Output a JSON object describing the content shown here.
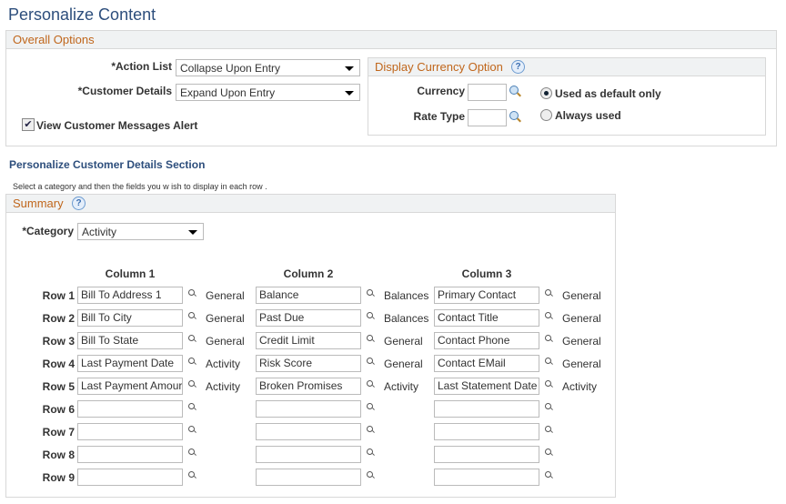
{
  "title": "Personalize Content",
  "overall": {
    "header": "Overall Options",
    "action_list_label": "*Action List",
    "action_list_value": "Collapse Upon Entry",
    "customer_details_label": "*Customer Details",
    "customer_details_value": "Expand Upon Entry",
    "view_alert_label": "View Customer Messages Alert",
    "view_alert_checked": true
  },
  "currency": {
    "header": "Display Currency Option",
    "currency_label": "Currency",
    "currency_value": "",
    "rate_type_label": "Rate Type",
    "rate_type_value": "",
    "radio_default": "Used as default only",
    "radio_always": "Always used",
    "selected": "Used as default only"
  },
  "section_title": "Personalize Customer Details Section",
  "instructions": "Select a category and then the fields you w ish to display in each row .",
  "summary": {
    "header": "Summary",
    "category_label": "*Category",
    "category_value": "Activity",
    "columns": [
      "Column 1",
      "Column 2",
      "Column 3"
    ],
    "rows": [
      {
        "label": "Row 1",
        "cells": [
          {
            "value": "Bill To Address 1",
            "desc": "General"
          },
          {
            "value": "Balance",
            "desc": "Balances"
          },
          {
            "value": "Primary Contact",
            "desc": "General"
          }
        ]
      },
      {
        "label": "Row 2",
        "cells": [
          {
            "value": "Bill To City",
            "desc": "General"
          },
          {
            "value": "Past Due",
            "desc": "Balances"
          },
          {
            "value": "Contact Title",
            "desc": "General"
          }
        ]
      },
      {
        "label": "Row 3",
        "cells": [
          {
            "value": "Bill To State",
            "desc": "General"
          },
          {
            "value": "Credit Limit",
            "desc": "General"
          },
          {
            "value": "Contact Phone",
            "desc": "General"
          }
        ]
      },
      {
        "label": "Row 4",
        "cells": [
          {
            "value": "Last Payment Date",
            "desc": "Activity"
          },
          {
            "value": "Risk Score",
            "desc": "General"
          },
          {
            "value": "Contact EMail",
            "desc": "General"
          }
        ]
      },
      {
        "label": "Row 5",
        "cells": [
          {
            "value": "Last Payment Amour",
            "desc": "Activity"
          },
          {
            "value": "Broken Promises",
            "desc": "Activity"
          },
          {
            "value": "Last Statement Date",
            "desc": "Activity"
          }
        ]
      },
      {
        "label": "Row 6",
        "cells": [
          {
            "value": "",
            "desc": ""
          },
          {
            "value": "",
            "desc": ""
          },
          {
            "value": "",
            "desc": ""
          }
        ]
      },
      {
        "label": "Row 7",
        "cells": [
          {
            "value": "",
            "desc": ""
          },
          {
            "value": "",
            "desc": ""
          },
          {
            "value": "",
            "desc": ""
          }
        ]
      },
      {
        "label": "Row 8",
        "cells": [
          {
            "value": "",
            "desc": ""
          },
          {
            "value": "",
            "desc": ""
          },
          {
            "value": "",
            "desc": ""
          }
        ]
      },
      {
        "label": "Row 9",
        "cells": [
          {
            "value": "",
            "desc": ""
          },
          {
            "value": "",
            "desc": ""
          },
          {
            "value": "",
            "desc": ""
          }
        ]
      }
    ]
  }
}
